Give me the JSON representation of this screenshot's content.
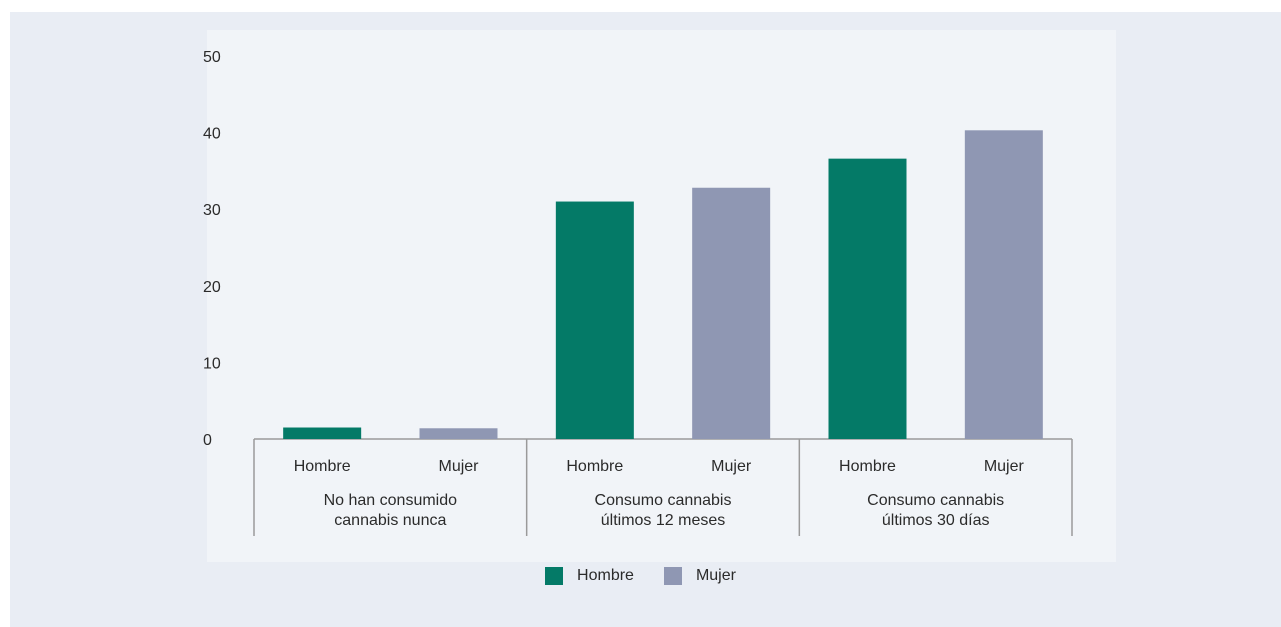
{
  "chart_data": {
    "type": "bar",
    "title": "",
    "xlabel": "",
    "ylabel": "",
    "ylim": [
      0,
      50
    ],
    "yticks": [
      0,
      10,
      20,
      30,
      40,
      50
    ],
    "grid": false,
    "legend_position": "bottom",
    "groups": [
      {
        "label_lines": [
          "No han consumido",
          "cannabis nunca"
        ],
        "categories": [
          "Hombre",
          "Mujer"
        ]
      },
      {
        "label_lines": [
          "Consumo cannabis",
          "últimos 12 meses"
        ],
        "categories": [
          "Hombre",
          "Mujer"
        ]
      },
      {
        "label_lines": [
          "Consumo cannabis",
          "últimos 30 días"
        ],
        "categories": [
          "Hombre",
          "Mujer"
        ]
      }
    ],
    "series": [
      {
        "name": "Hombre",
        "color": "#047a67",
        "values": [
          1.5,
          31.0,
          36.6
        ]
      },
      {
        "name": "Mujer",
        "color": "#8f97b3",
        "values": [
          1.4,
          32.8,
          40.3
        ]
      }
    ]
  }
}
